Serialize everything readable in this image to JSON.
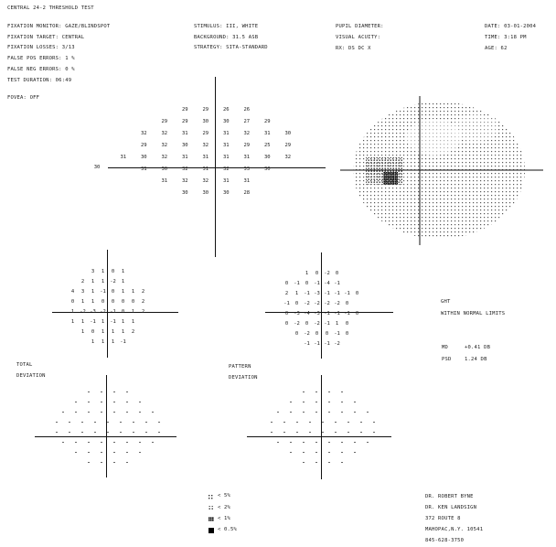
{
  "header": {
    "title": "CENTRAL 24-2 THRESHOLD TEST",
    "fixation_monitor": "FIXATION MONITOR: GAZE/BLINDSPOT",
    "fixation_target": "FIXATION TARGET: CENTRAL",
    "fixation_losses": "FIXATION LOSSES: 3/13",
    "false_pos": "FALSE POS ERRORS:  1 %",
    "false_neg": "FALSE NEG ERRORS:  0 %",
    "test_duration": "TEST DURATION: 06:49",
    "fovea": "FOVEA: OFF",
    "stimulus": "STIMULUS: III, WHITE",
    "background": "BACKGROUND: 31.5 ASB",
    "strategy": "STRATEGY: SITA-STANDARD",
    "pupil": "PUPIL DIAMETER:",
    "acuity": "VISUAL ACUITY:",
    "rx": "RX:         DS         DC  X",
    "date": "DATE: 03-01-2004",
    "time": "TIME:  3:18 PM",
    "age": "AGE: 62"
  },
  "threshold": {
    "rows": [
      [
        "29",
        "29",
        "26",
        "26"
      ],
      [
        "29",
        "29",
        "30",
        "30",
        "27",
        "29"
      ],
      [
        "32",
        "32",
        "31",
        "29",
        "31",
        "32",
        "31",
        "30"
      ],
      [
        "29",
        "32",
        "30",
        "32",
        "31",
        "29",
        "25",
        "29"
      ],
      [
        "31",
        "30",
        "32",
        "31",
        "31",
        "31",
        "31",
        "30",
        "32"
      ],
      [
        "31",
        "30",
        "32",
        "31",
        "32",
        "33",
        "30"
      ],
      [
        "31",
        "32",
        "32",
        "31",
        "31"
      ],
      [
        "30",
        "30",
        "30",
        "28"
      ]
    ],
    "outlier": "30"
  },
  "total_deviation": {
    "label_1": "TOTAL",
    "label_2": "DEVIATION",
    "rows": [
      [
        "3",
        "1",
        "0",
        "1"
      ],
      [
        "2",
        "1",
        "1",
        "-2",
        "1"
      ],
      [
        "4",
        "3",
        "1",
        "-1",
        "0",
        "1",
        "1",
        "2"
      ],
      [
        "0",
        "1",
        "1",
        "0",
        "0",
        "0",
        "0",
        "2"
      ],
      [
        "1",
        "-2",
        "-3",
        "-2",
        "-1",
        "0",
        "1",
        "2"
      ],
      [
        "1",
        "1",
        "-1",
        "1",
        "-1",
        "1",
        "1"
      ],
      [
        "1",
        "0",
        "1",
        "1",
        "1",
        "2"
      ],
      [
        "1",
        "1",
        "1",
        "-1"
      ]
    ]
  },
  "pattern_deviation": {
    "label_1": "PATTERN",
    "label_2": "DEVIATION",
    "rows": [
      [
        "1",
        "0",
        "-2",
        "0"
      ],
      [
        "0",
        "-1",
        "0",
        "-1",
        "-4",
        "-1"
      ],
      [
        "2",
        "1",
        "-1",
        "-3",
        "-1",
        "-1",
        "-1",
        "0"
      ],
      [
        "-1",
        "0",
        "-2",
        "-2",
        "-2",
        "-2",
        "0"
      ],
      [
        "0",
        "-3",
        "-4",
        "-3",
        "-1",
        "-1",
        "-1",
        "0"
      ],
      [
        "0",
        "-2",
        "0",
        "-2",
        "-1",
        "1",
        "0"
      ],
      [
        "0",
        "-2",
        "0",
        "0",
        "-1",
        "0"
      ],
      [
        "-1",
        "-1",
        "-1",
        "-2"
      ]
    ]
  },
  "summary": {
    "ght_label": "GHT",
    "ght_value": "WITHIN NORMAL LIMITS",
    "md_label": "MD",
    "md_value": "+0.41 DB",
    "psd_label": "PSD",
    "psd_value": "1.24 DB"
  },
  "legend": {
    "p5": "< 5%",
    "p2": "< 2%",
    "p1": "< 1%",
    "p05": "< 0.5%"
  },
  "address": {
    "line1": "DR. ROBERT BYNE",
    "line2": "DR. KEN LANDSIGN",
    "line3": "372 ROUTE 8",
    "line4": "MAHOPAC,N.Y. 10541",
    "line5": "845-628-3750"
  }
}
